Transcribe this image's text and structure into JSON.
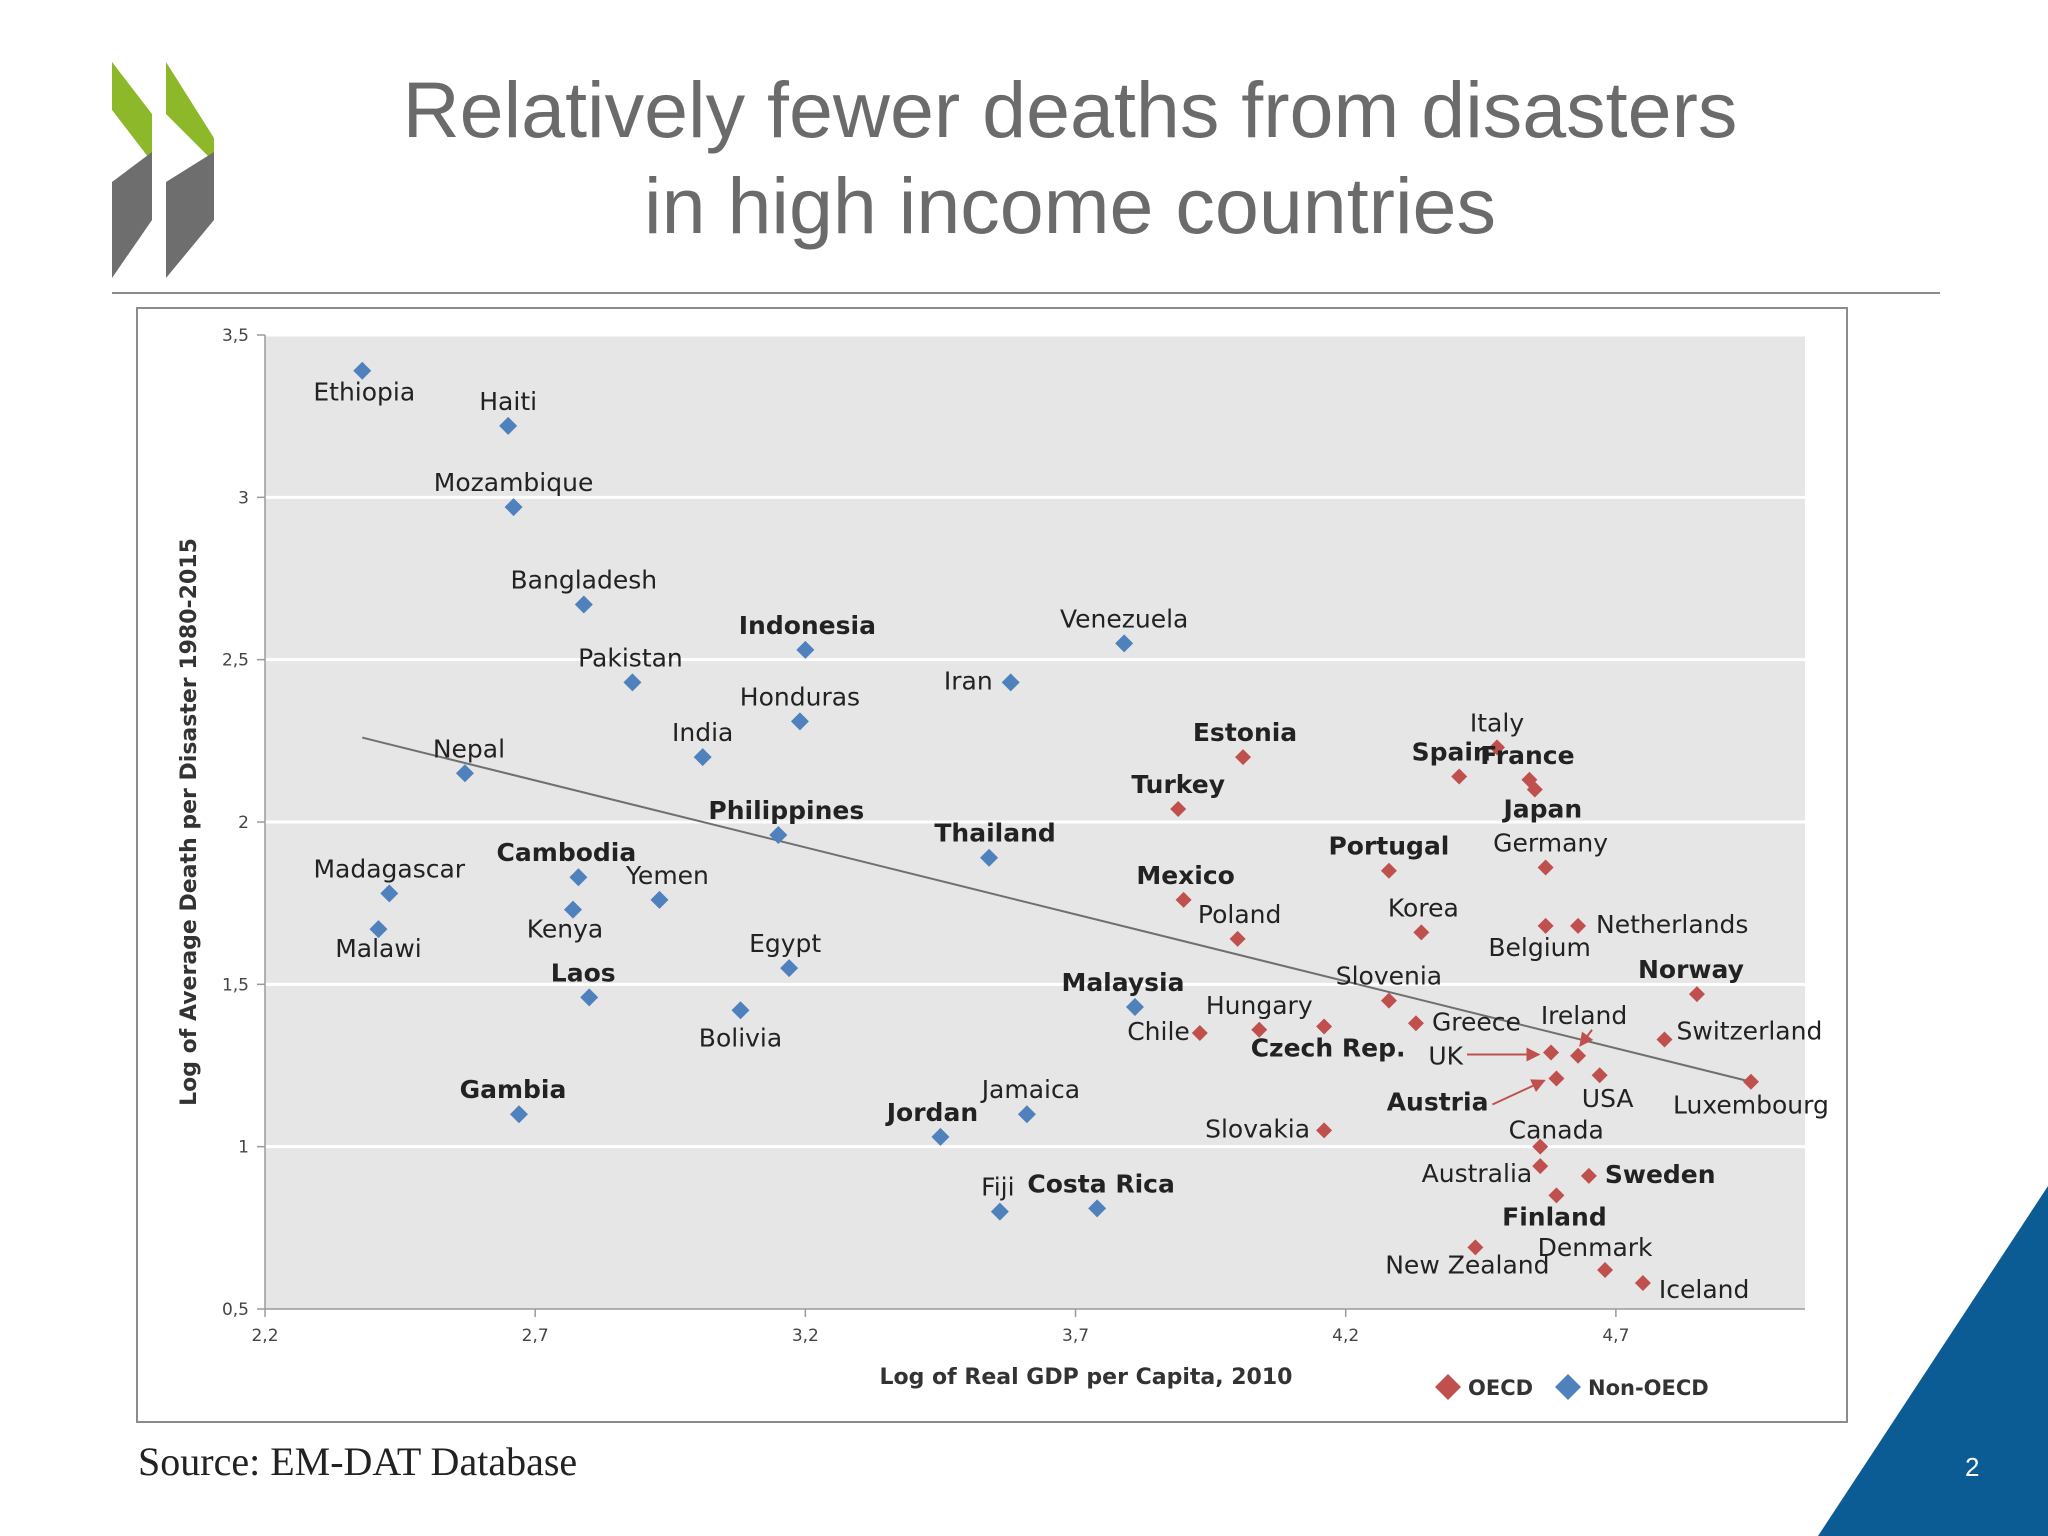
{
  "slide": {
    "title_line1": "Relatively fewer deaths from disasters",
    "title_line2": "in high income countries",
    "source": "Source: EM-DAT Database",
    "page_number": "2"
  },
  "colors": {
    "oecd": "#c0504d",
    "non_oecd": "#4f81bd",
    "plot_bg": "#e6e6e6",
    "logo_green": "#8cb82a",
    "logo_gray": "#6e6e6e",
    "corner_blue": "#0b5c94"
  },
  "chart_data": {
    "type": "scatter",
    "xlabel": "Log of Real GDP per Capita, 2010",
    "ylabel": "Log of Average Death per Disaster 1980-2015",
    "xlim": [
      2.2,
      5.05
    ],
    "ylim": [
      0.5,
      3.5
    ],
    "x_ticks": [
      {
        "value": 2.2,
        "label": "2,2"
      },
      {
        "value": 2.7,
        "label": "2,7"
      },
      {
        "value": 3.2,
        "label": "3,2"
      },
      {
        "value": 3.7,
        "label": "3,7"
      },
      {
        "value": 4.2,
        "label": "4,2"
      },
      {
        "value": 4.7,
        "label": "4,7"
      }
    ],
    "y_ticks": [
      {
        "value": 0.5,
        "label": "0,5"
      },
      {
        "value": 1,
        "label": "1"
      },
      {
        "value": 1.5,
        "label": "1,5"
      },
      {
        "value": 2,
        "label": "2"
      },
      {
        "value": 2.5,
        "label": "2,5"
      },
      {
        "value": 3,
        "label": "3"
      },
      {
        "value": 3.5,
        "label": "3,5"
      }
    ],
    "grid": "horizontal",
    "legend_position": "bottom-right",
    "series": [
      {
        "name": "OECD",
        "points": [
          {
            "label": "Estonia",
            "x": 4.01,
            "y": 2.2,
            "bold": true
          },
          {
            "label": "Turkey",
            "x": 3.89,
            "y": 2.04,
            "bold": true
          },
          {
            "label": "Mexico",
            "x": 3.9,
            "y": 1.76,
            "bold": true
          },
          {
            "label": "Poland",
            "x": 4.0,
            "y": 1.64,
            "bold": false
          },
          {
            "label": "Chile",
            "x": 3.93,
            "y": 1.35,
            "bold": false
          },
          {
            "label": "Hungary",
            "x": 4.04,
            "y": 1.36,
            "bold": false
          },
          {
            "label": "Czech Rep.",
            "x": 4.16,
            "y": 1.37,
            "bold": true
          },
          {
            "label": "Slovakia",
            "x": 4.16,
            "y": 1.05,
            "bold": false
          },
          {
            "label": "Portugal",
            "x": 4.28,
            "y": 1.85,
            "bold": true
          },
          {
            "label": "Korea",
            "x": 4.34,
            "y": 1.66,
            "bold": false
          },
          {
            "label": "Slovenia",
            "x": 4.28,
            "y": 1.45,
            "bold": false
          },
          {
            "label": "Greece",
            "x": 4.33,
            "y": 1.38,
            "bold": false
          },
          {
            "label": "Spain",
            "x": 4.41,
            "y": 2.14,
            "bold": true
          },
          {
            "label": "Italy",
            "x": 4.48,
            "y": 2.23,
            "bold": false
          },
          {
            "label": "France",
            "x": 4.54,
            "y": 2.13,
            "bold": true
          },
          {
            "label": "Japan",
            "x": 4.55,
            "y": 2.1,
            "bold": true
          },
          {
            "label": "Germany",
            "x": 4.57,
            "y": 1.86,
            "bold": false
          },
          {
            "label": "Belgium",
            "x": 4.57,
            "y": 1.68,
            "bold": false
          },
          {
            "label": "Netherlands",
            "x": 4.63,
            "y": 1.68,
            "bold": false
          },
          {
            "label": "UK",
            "x": 4.58,
            "y": 1.29,
            "bold": false
          },
          {
            "label": "Ireland",
            "x": 4.63,
            "y": 1.28,
            "bold": false
          },
          {
            "label": "Austria",
            "x": 4.59,
            "y": 1.21,
            "bold": true
          },
          {
            "label": "USA",
            "x": 4.67,
            "y": 1.22,
            "bold": false
          },
          {
            "label": "Canada",
            "x": 4.56,
            "y": 1.0,
            "bold": false
          },
          {
            "label": "Australia",
            "x": 4.56,
            "y": 0.94,
            "bold": false
          },
          {
            "label": "Sweden",
            "x": 4.65,
            "y": 0.91,
            "bold": true
          },
          {
            "label": "Finland",
            "x": 4.59,
            "y": 0.85,
            "bold": true
          },
          {
            "label": "New Zealand",
            "x": 4.44,
            "y": 0.69,
            "bold": false
          },
          {
            "label": "Denmark",
            "x": 4.68,
            "y": 0.62,
            "bold": false
          },
          {
            "label": "Iceland",
            "x": 4.75,
            "y": 0.58,
            "bold": false
          },
          {
            "label": "Norway",
            "x": 4.85,
            "y": 1.47,
            "bold": true
          },
          {
            "label": "Switzerland",
            "x": 4.79,
            "y": 1.33,
            "bold": false
          },
          {
            "label": "Luxembourg",
            "x": 4.95,
            "y": 1.2,
            "bold": false
          }
        ]
      },
      {
        "name": "Non-OECD",
        "points": [
          {
            "label": "Ethiopia",
            "x": 2.38,
            "y": 3.39,
            "bold": false
          },
          {
            "label": "Haiti",
            "x": 2.65,
            "y": 3.22,
            "bold": false
          },
          {
            "label": "Mozambique",
            "x": 2.66,
            "y": 2.97,
            "bold": false
          },
          {
            "label": "Bangladesh",
            "x": 2.79,
            "y": 2.67,
            "bold": false
          },
          {
            "label": "Pakistan",
            "x": 2.88,
            "y": 2.43,
            "bold": false
          },
          {
            "label": "Indonesia",
            "x": 3.2,
            "y": 2.53,
            "bold": true
          },
          {
            "label": "Honduras",
            "x": 3.19,
            "y": 2.31,
            "bold": false
          },
          {
            "label": "India",
            "x": 3.01,
            "y": 2.2,
            "bold": false
          },
          {
            "label": "Venezuela",
            "x": 3.79,
            "y": 2.55,
            "bold": false
          },
          {
            "label": "Iran",
            "x": 3.58,
            "y": 2.43,
            "bold": false
          },
          {
            "label": "Nepal",
            "x": 2.57,
            "y": 2.15,
            "bold": false
          },
          {
            "label": "Philippines",
            "x": 3.15,
            "y": 1.96,
            "bold": true
          },
          {
            "label": "Thailand",
            "x": 3.54,
            "y": 1.89,
            "bold": true
          },
          {
            "label": "Madagascar",
            "x": 2.43,
            "y": 1.78,
            "bold": false
          },
          {
            "label": "Cambodia",
            "x": 2.78,
            "y": 1.83,
            "bold": true
          },
          {
            "label": "Yemen",
            "x": 2.93,
            "y": 1.76,
            "bold": false
          },
          {
            "label": "Kenya",
            "x": 2.77,
            "y": 1.73,
            "bold": false
          },
          {
            "label": "Malawi",
            "x": 2.41,
            "y": 1.67,
            "bold": false
          },
          {
            "label": "Egypt",
            "x": 3.17,
            "y": 1.55,
            "bold": false
          },
          {
            "label": "Laos",
            "x": 2.8,
            "y": 1.46,
            "bold": true
          },
          {
            "label": "Bolivia",
            "x": 3.08,
            "y": 1.42,
            "bold": false
          },
          {
            "label": "Malaysia",
            "x": 3.81,
            "y": 1.43,
            "bold": true
          },
          {
            "label": "Gambia",
            "x": 2.67,
            "y": 1.1,
            "bold": true
          },
          {
            "label": "Jamaica",
            "x": 3.61,
            "y": 1.1,
            "bold": false
          },
          {
            "label": "Jordan",
            "x": 3.45,
            "y": 1.03,
            "bold": true
          },
          {
            "label": "Fiji",
            "x": 3.56,
            "y": 0.8,
            "bold": false
          },
          {
            "label": "Costa Rica",
            "x": 3.74,
            "y": 0.81,
            "bold": true
          }
        ]
      }
    ],
    "trendline": {
      "x": [
        2.38,
        4.95
      ],
      "y": [
        2.26,
        1.2
      ]
    }
  }
}
